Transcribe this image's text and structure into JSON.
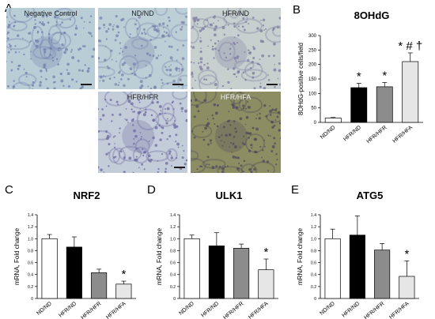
{
  "panels": {
    "A": "A",
    "B": "B",
    "C": "C",
    "D": "D",
    "E": "E"
  },
  "micrographs": [
    {
      "label": "Negative Control",
      "tone": "#b9cdd6",
      "cell": "#6f7fae"
    },
    {
      "label": "ND/ND",
      "tone": "#bccfd6",
      "cell": "#7a82ad"
    },
    {
      "label": "HFR/ND",
      "tone": "#c7d0cf",
      "cell": "#7e7a9f"
    },
    {
      "label": "HFR/HFR",
      "tone": "#c3ccd9",
      "cell": "#6d6aa0"
    },
    {
      "label": "HFR/HFA",
      "tone": "#8d8d63",
      "cell": "#4e4a5a"
    }
  ],
  "chart_data": [
    {
      "type": "bar",
      "title": "8OHdG",
      "ylabel": "8OHdG-positive cells/field",
      "categories": [
        "ND/ND",
        "HFR/ND",
        "HFR/HFR",
        "HFR/HFA"
      ],
      "values": [
        15,
        120,
        123,
        210
      ],
      "errors": [
        2,
        15,
        15,
        30
      ],
      "annotations": [
        "",
        "*",
        "*",
        "* # †"
      ],
      "ylim": [
        0,
        300
      ],
      "yticks": [
        "0",
        "50",
        "100",
        "150",
        "200",
        "250",
        "300"
      ],
      "colors": [
        "#ffffff",
        "#000000",
        "#8c8c8c",
        "#e6e6e6"
      ]
    },
    {
      "type": "bar",
      "title": "NRF2",
      "ylabel": "mRNA, Fold change",
      "categories": [
        "ND/ND",
        "HFR/ND",
        "HFR/HFR",
        "HFR/HFA"
      ],
      "values": [
        1.0,
        0.86,
        0.43,
        0.24
      ],
      "errors": [
        0.07,
        0.17,
        0.06,
        0.05
      ],
      "annotations": [
        "",
        "",
        "",
        "*"
      ],
      "ylim": [
        0,
        1.4
      ],
      "yticks": [
        "0",
        "0.2",
        "0.4",
        "0.6",
        "0.8",
        "1.0",
        "1.2",
        "1.4"
      ],
      "colors": [
        "#ffffff",
        "#000000",
        "#8c8c8c",
        "#e6e6e6"
      ]
    },
    {
      "type": "bar",
      "title": "ULK1",
      "ylabel": "mRNA, Fold change",
      "categories": [
        "ND/ND",
        "HFR/ND",
        "HFR/HFR",
        "HFR/HFA"
      ],
      "values": [
        1.0,
        0.88,
        0.84,
        0.48
      ],
      "errors": [
        0.06,
        0.22,
        0.07,
        0.18
      ],
      "annotations": [
        "",
        "",
        "",
        "*"
      ],
      "ylim": [
        0,
        1.4
      ],
      "yticks": [
        "0",
        "0.2",
        "0.4",
        "0.6",
        "0.8",
        "1.0",
        "1.2",
        "1.4"
      ],
      "colors": [
        "#ffffff",
        "#000000",
        "#8c8c8c",
        "#e6e6e6"
      ]
    },
    {
      "type": "bar",
      "title": "ATG5",
      "ylabel": "mRNA, Fold change",
      "categories": [
        "ND/ND",
        "HFR/ND",
        "HFR/HFR",
        "HFR/HFA"
      ],
      "values": [
        1.0,
        1.06,
        0.81,
        0.37
      ],
      "errors": [
        0.16,
        0.32,
        0.11,
        0.26
      ],
      "annotations": [
        "",
        "",
        "",
        "*"
      ],
      "ylim": [
        0,
        1.4
      ],
      "yticks": [
        "0",
        "0.2",
        "0.4",
        "0.6",
        "0.8",
        "1.0",
        "1.2",
        "1.4"
      ],
      "colors": [
        "#ffffff",
        "#000000",
        "#8c8c8c",
        "#e6e6e6"
      ]
    }
  ]
}
